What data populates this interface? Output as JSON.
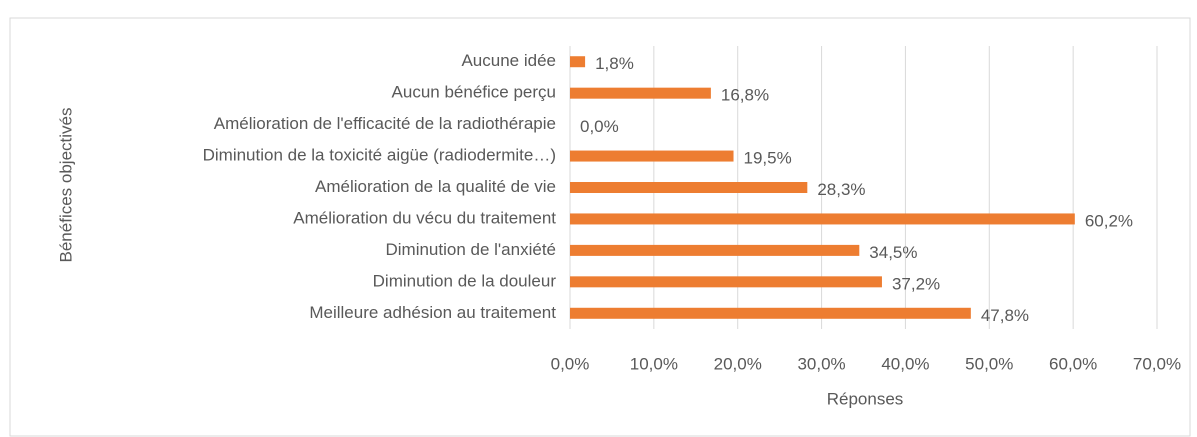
{
  "chart_data": {
    "type": "bar",
    "orientation": "horizontal",
    "x_label": "Réponses",
    "y_label": "Bénéfices objectivés",
    "categories": [
      "Aucune idée",
      "Aucun bénéfice perçu",
      "Amélioration de l'efficacité de la radiothérapie",
      "Diminution de la toxicité aigüe (radiodermite…)",
      "Amélioration de la qualité de vie",
      "Amélioration du vécu du traitement",
      "Diminution de l'anxiété",
      "Diminution de la douleur",
      "Meilleure adhésion au traitement"
    ],
    "values": [
      1.8,
      16.8,
      0.0,
      19.5,
      28.3,
      60.2,
      34.5,
      37.2,
      47.8
    ],
    "value_labels": [
      "1,8%",
      "16,8%",
      "0,0%",
      "19,5%",
      "28,3%",
      "60,2%",
      "34,5%",
      "37,2%",
      "47,8%"
    ],
    "color": "#ed7d31",
    "xlim": [
      0,
      70
    ],
    "xticks": [
      {
        "value": 0,
        "label": "0,0%"
      },
      {
        "value": 10,
        "label": "10,0%"
      },
      {
        "value": 20,
        "label": "20,0%"
      },
      {
        "value": 30,
        "label": "30,0%"
      },
      {
        "value": 40,
        "label": "40,0%"
      },
      {
        "value": 50,
        "label": "50,0%"
      },
      {
        "value": 60,
        "label": "60,0%"
      },
      {
        "value": 70,
        "label": "70,0%"
      }
    ],
    "grid": true
  }
}
